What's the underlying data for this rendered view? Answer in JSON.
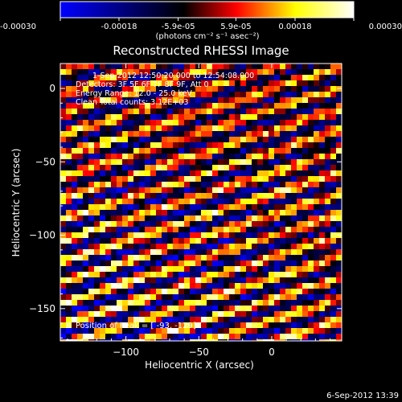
{
  "colorbar": {
    "ticks": [
      "-0.00030",
      "-0.00018",
      "-5.9e-05",
      "5.9e-05",
      "0.00018",
      "0.00030"
    ],
    "range": [
      -0.0003,
      0.0003
    ],
    "units_label": "(photons cm⁻² s⁻¹ asec⁻²)",
    "colors": [
      "#0000ff",
      "#000000",
      "#ff0000",
      "#ffff00",
      "#ffffff"
    ]
  },
  "chart_data": {
    "type": "heatmap",
    "title": "Reconstructed RHESSI Image",
    "xlabel": "Heliocentric X (arcsec)",
    "ylabel": "Heliocentric Y (arcsec)",
    "xlim": [
      -145,
      48
    ],
    "ylim": [
      -172,
      17
    ],
    "xticks": [
      -100,
      -50,
      0
    ],
    "yticks": [
      0,
      -50,
      -100,
      -150
    ],
    "grid": false,
    "annotations": [
      "1-Sep-2012 12:50:20.000 to 12:54:08.000",
      "Detectors: 3F 5F 6F 7F 8F 9F, Att 0",
      "Energy Range: 12.0 - 25.0 keV",
      "Clean     Total counts: 3.12E+03"
    ],
    "peak_label": "Position of Peak = [ -93, -129]",
    "peak_position": [
      -93,
      -129
    ]
  },
  "footer": {
    "date": "6-Sep-2012 13:39"
  }
}
